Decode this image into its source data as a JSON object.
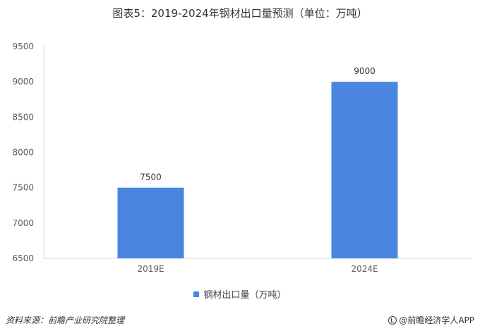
{
  "chart_data": {
    "type": "bar",
    "title": "图表5：2019-2024年钢材出口量预测（单位：万吨）",
    "categories": [
      "2019E",
      "2024E"
    ],
    "series": [
      {
        "name": "钢材出口量（万吨）",
        "values": [
          7500,
          9000
        ],
        "color": "#4a86e0"
      }
    ],
    "data_labels": [
      "7500",
      "9000"
    ],
    "ylim": [
      6500,
      9500
    ],
    "yticks": [
      6500,
      7000,
      7500,
      8000,
      8500,
      9000,
      9500
    ],
    "ytick_labels": [
      "6500",
      "7000",
      "7500",
      "8000",
      "8500",
      "9000",
      "9500"
    ],
    "grid": false,
    "legend_position": "bottom"
  },
  "footer": {
    "source": "资料来源：前瞻产业研究院整理",
    "brand": "@前瞻经济学人APP"
  },
  "colors": {
    "bar": "#4a86e0",
    "axis": "#d9d9d9"
  }
}
